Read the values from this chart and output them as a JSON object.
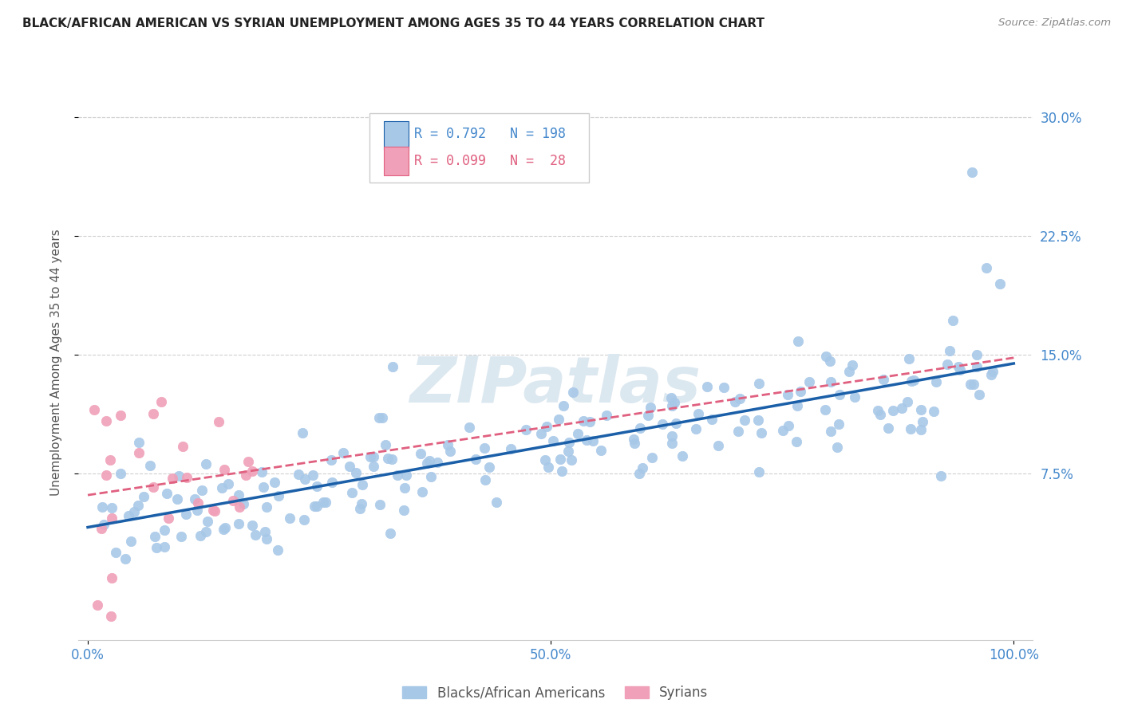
{
  "title": "BLACK/AFRICAN AMERICAN VS SYRIAN UNEMPLOYMENT AMONG AGES 35 TO 44 YEARS CORRELATION CHART",
  "source": "Source: ZipAtlas.com",
  "ylabel": "Unemployment Among Ages 35 to 44 years",
  "R_blue": 0.792,
  "N_blue": 198,
  "R_pink": 0.099,
  "N_pink": 28,
  "blue_color": "#a8c8e8",
  "pink_color": "#f0a0b8",
  "blue_line_color": "#1a5fa8",
  "pink_line_color": "#e06080",
  "watermark_color": "#dce8f0",
  "background_color": "#ffffff",
  "grid_color": "#d0d0d0",
  "title_color": "#222222",
  "axis_label_color": "#555555",
  "tick_label_color": "#4488cc",
  "right_tick_color": "#4488cc",
  "legend1_label": "Blacks/African Americans",
  "legend2_label": "Syrians"
}
